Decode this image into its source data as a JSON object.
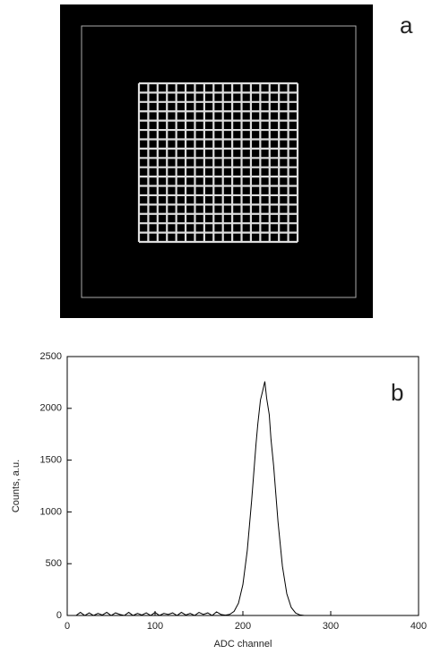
{
  "chart_data": [
    {
      "type": "image",
      "label": "a"
    },
    {
      "type": "line",
      "label": "b",
      "x_label": "ADC channel",
      "y_label": "Counts, a.u.",
      "xlim": [
        0,
        400
      ],
      "ylim": [
        0,
        2500
      ],
      "xticks": [
        0,
        100,
        200,
        300,
        400
      ],
      "yticks": [
        0,
        500,
        1000,
        1500,
        2000,
        2500
      ],
      "series": [
        {
          "color": "#000000",
          "x": [
            10,
            15,
            20,
            25,
            30,
            35,
            40,
            45,
            50,
            55,
            60,
            65,
            70,
            75,
            80,
            85,
            90,
            95,
            100,
            105,
            110,
            115,
            120,
            125,
            130,
            135,
            140,
            145,
            150,
            155,
            160,
            165,
            170,
            175,
            180,
            185,
            190,
            195,
            200,
            205,
            210,
            215,
            217,
            220,
            222,
            225,
            227,
            230,
            232,
            235,
            240,
            245,
            250,
            255,
            260,
            265,
            270
          ],
          "values": [
            0,
            30,
            0,
            25,
            0,
            20,
            5,
            30,
            0,
            25,
            10,
            0,
            30,
            0,
            20,
            5,
            25,
            0,
            30,
            0,
            20,
            10,
            25,
            0,
            30,
            5,
            20,
            0,
            30,
            10,
            25,
            0,
            35,
            10,
            3,
            11,
            40,
            119,
            298,
            629,
            1114,
            1661,
            1850,
            2081,
            2150,
            2260,
            2100,
            1941,
            1700,
            1445,
            904,
            476,
            210,
            78,
            24,
            5,
            0
          ]
        }
      ]
    }
  ]
}
